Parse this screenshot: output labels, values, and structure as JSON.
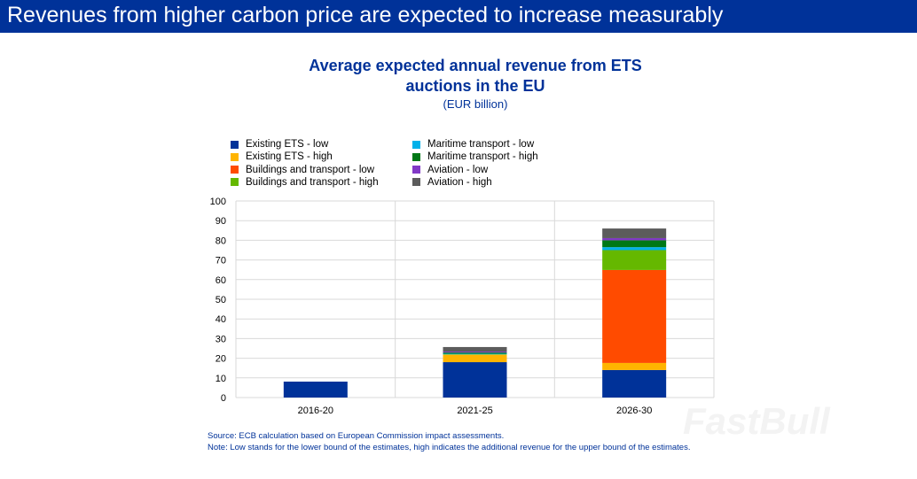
{
  "header": {
    "title": "Revenues from higher carbon price are expected to increase measurably"
  },
  "watermark": "FastBull",
  "chart_data": {
    "type": "bar",
    "stacked": true,
    "title_line1": "Average expected annual revenue from ETS",
    "title_line2": "auctions in the EU",
    "subtitle": "(EUR billion)",
    "categories": [
      "2016-20",
      "2021-25",
      "2026-30"
    ],
    "ylim": [
      0,
      100
    ],
    "yticks": [
      0,
      10,
      20,
      30,
      40,
      50,
      60,
      70,
      80,
      90,
      100
    ],
    "grid": true,
    "legend_placement": "top",
    "series": [
      {
        "name": "Existing ETS - low",
        "color": "#003299",
        "values": [
          8.1,
          18,
          14
        ]
      },
      {
        "name": "Existing ETS - high",
        "color": "#FFB400",
        "values": [
          0,
          3.8,
          3.6
        ]
      },
      {
        "name": "Buildings and transport - low",
        "color": "#FF4B00",
        "values": [
          0,
          0,
          47.3
        ]
      },
      {
        "name": "Buildings and transport - high",
        "color": "#65B800",
        "values": [
          0,
          0.2,
          10.1
        ]
      },
      {
        "name": "Maritime transport - low",
        "color": "#00B1EA",
        "values": [
          0,
          0.3,
          1.5
        ]
      },
      {
        "name": "Maritime transport - high",
        "color": "#007816",
        "values": [
          0,
          0.6,
          3.5
        ]
      },
      {
        "name": "Aviation - low",
        "color": "#8139C6",
        "values": [
          0,
          0.5,
          1.1
        ]
      },
      {
        "name": "Aviation - high",
        "color": "#5C5C5C",
        "values": [
          0,
          2.3,
          4.9
        ]
      }
    ]
  },
  "notes": {
    "source": "Source: ECB calculation based on European Commission impact assessments.",
    "note": "Note: Low stands for the lower bound of the estimates, high indicates the additional revenue for the upper bound of the estimates."
  }
}
